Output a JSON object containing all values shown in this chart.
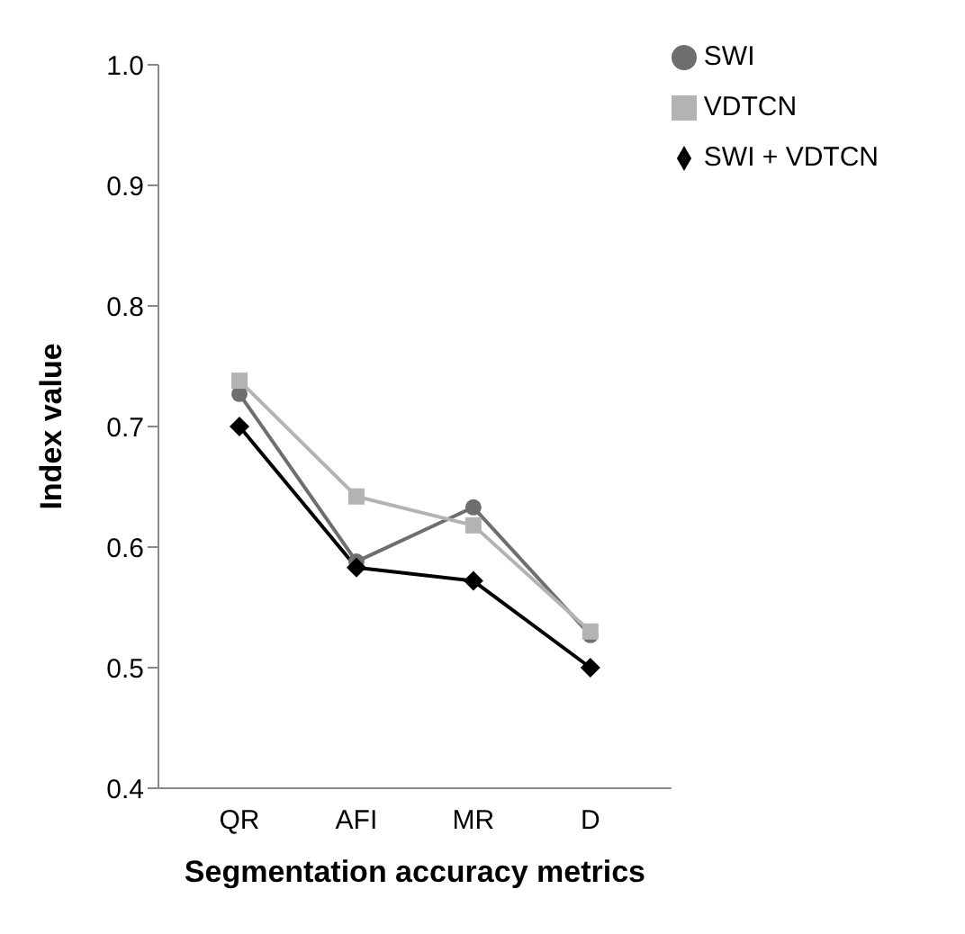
{
  "chart_data": {
    "type": "line",
    "xlabel": "Segmentation accuracy metrics",
    "ylabel": "Index value",
    "categories": [
      "QR",
      "AFI",
      "MR",
      "D"
    ],
    "series": [
      {
        "name": "SWI",
        "color": "#6e6e6e",
        "marker": "circle",
        "values": [
          0.727,
          0.588,
          0.633,
          0.527
        ]
      },
      {
        "name": "VDTCN",
        "color": "#b3b3b3",
        "marker": "square",
        "values": [
          0.738,
          0.642,
          0.618,
          0.53
        ]
      },
      {
        "name": "SWI + VDTCN",
        "color": "#000000",
        "marker": "diamond",
        "values": [
          0.7,
          0.583,
          0.572,
          0.5
        ]
      }
    ],
    "ylim": [
      0.4,
      1.0
    ],
    "yticks": [
      0.4,
      0.5,
      0.6,
      0.7,
      0.8,
      0.9,
      {
        "value": 1,
        "label": "1.0"
      }
    ],
    "grid": false,
    "legend": "top right",
    "line_style": "solid"
  }
}
